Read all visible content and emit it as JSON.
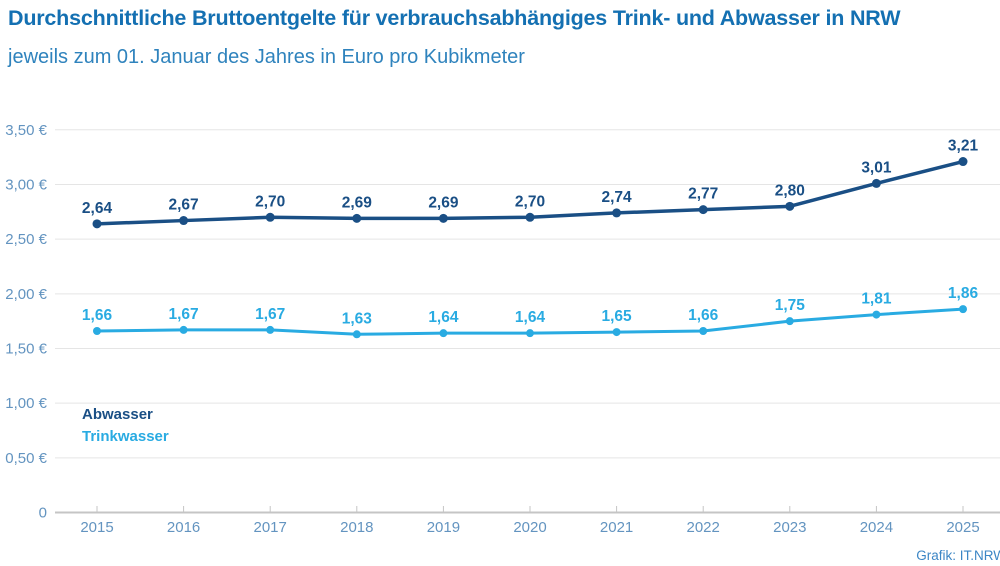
{
  "header": {
    "title": "Durchschnittliche Bruttoentgelte für verbrauchsabhängiges Trink- und Abwasser in NRW",
    "subtitle": "jeweils zum 01. Januar des Jahres in Euro pro Kubikmeter"
  },
  "legend": [
    {
      "label": "Abwasser",
      "color": "#1a4f85"
    },
    {
      "label": "Trinkwasser",
      "color": "#29abe2"
    }
  ],
  "footer": {
    "credit": "Grafik: IT.NRW"
  },
  "palette": {
    "title_blue": "#1470b2",
    "subtitle_blue": "#2f83bd",
    "axis_label_blue": "#6394c0",
    "gridline_gray": "#e5e5e5",
    "axis_line_gray": "#c5c5c5",
    "abwasser_navy": "#1a4f85",
    "trinkwasser_cyan": "#29abe2",
    "credit_blue": "#3c86c5"
  },
  "chart_data": {
    "type": "line",
    "title": "Durchschnittliche Bruttoentgelte für verbrauchsabhängiges Trink- und Abwasser in NRW",
    "subtitle": "jeweils zum 01. Januar des Jahres in Euro pro Kubikmeter",
    "xlabel": "",
    "ylabel": "Euro pro Kubikmeter",
    "categories": [
      "2015",
      "2016",
      "2017",
      "2018",
      "2019",
      "2020",
      "2021",
      "2022",
      "2023",
      "2024",
      "2025"
    ],
    "series": [
      {
        "name": "Abwasser",
        "color": "#1a4f85",
        "values": [
          2.64,
          2.67,
          2.7,
          2.69,
          2.69,
          2.7,
          2.74,
          2.77,
          2.8,
          3.01,
          3.21
        ],
        "labels": [
          "2,64",
          "2,67",
          "2,70",
          "2,69",
          "2,69",
          "2,70",
          "2,74",
          "2,77",
          "2,80",
          "3,01",
          "3,21"
        ]
      },
      {
        "name": "Trinkwasser",
        "color": "#29abe2",
        "values": [
          1.66,
          1.67,
          1.67,
          1.63,
          1.64,
          1.64,
          1.65,
          1.66,
          1.75,
          1.81,
          1.86
        ],
        "labels": [
          "1,66",
          "1,67",
          "1,67",
          "1,63",
          "1,64",
          "1,64",
          "1,65",
          "1,66",
          "1,75",
          "1,81",
          "1,86"
        ]
      }
    ],
    "y_ticks": [
      {
        "value": 3.5,
        "label": "3,50 €"
      },
      {
        "value": 3.0,
        "label": "3,00 €"
      },
      {
        "value": 2.5,
        "label": "2,50 €"
      },
      {
        "value": 2.0,
        "label": "2,00 €"
      },
      {
        "value": 1.5,
        "label": "1,50 €"
      },
      {
        "value": 1.0,
        "label": "1,00 €"
      },
      {
        "value": 0.5,
        "label": "0,50 €"
      },
      {
        "value": 0,
        "label": "0"
      }
    ],
    "ylim": [
      0,
      3.5
    ],
    "grid": true,
    "legend_position": "inside-bottom-left"
  }
}
